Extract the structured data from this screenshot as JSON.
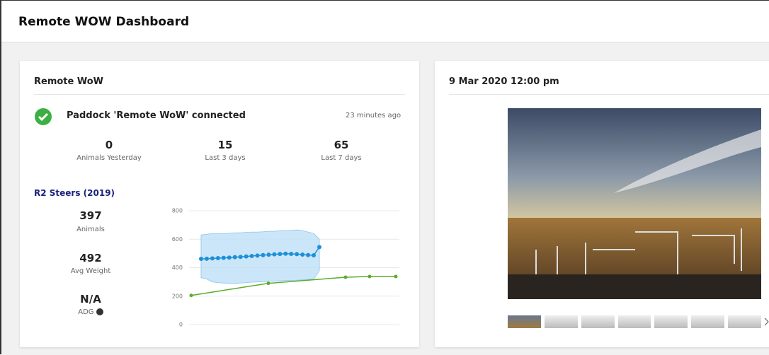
{
  "header": {
    "title": "Remote WOW Dashboard"
  },
  "status_card": {
    "title": "Remote WoW",
    "status": "Paddock 'Remote WoW' connected",
    "updated": "23 minutes ago",
    "stats": [
      {
        "value": 0,
        "label": "Animals Yesterday"
      },
      {
        "value": 15,
        "label": "Last 3 days"
      },
      {
        "value": 65,
        "label": "Last 7 days"
      }
    ],
    "mob": {
      "name": "R2 Steers (2019)",
      "metrics": [
        {
          "value": 397,
          "label": "Animals"
        },
        {
          "value": 492,
          "label": "Avg Weight"
        },
        {
          "value": "N/A",
          "label": "ADG"
        }
      ]
    },
    "weight_chart": {
      "type": "line",
      "ylim": [
        0,
        800
      ],
      "yticks": [
        0,
        200,
        400,
        600,
        800
      ],
      "grid": true,
      "measured": {
        "color": "#1e90d8",
        "values": [
          462,
          463,
          465,
          467,
          469,
          471,
          474,
          476,
          479,
          482,
          485,
          488,
          491,
          494,
          496,
          498,
          497,
          495,
          492,
          489,
          487,
          545
        ],
        "band_upper": [
          630,
          635,
          640,
          640,
          638,
          642,
          645,
          645,
          648,
          650,
          650,
          652,
          655,
          655,
          660,
          660,
          662,
          665,
          660,
          650,
          640,
          600
        ],
        "band_lower": [
          330,
          320,
          300,
          295,
          292,
          290,
          290,
          292,
          295,
          298,
          300,
          302,
          305,
          305,
          308,
          310,
          310,
          312,
          315,
          318,
          320,
          380
        ],
        "band_color": "#bfe0f8"
      },
      "target": {
        "color": "#5aac2e",
        "values": [
          205,
          290,
          333,
          338,
          338
        ]
      }
    }
  },
  "camera_card": {
    "title": "9 Mar 2020 12:00 pm"
  }
}
